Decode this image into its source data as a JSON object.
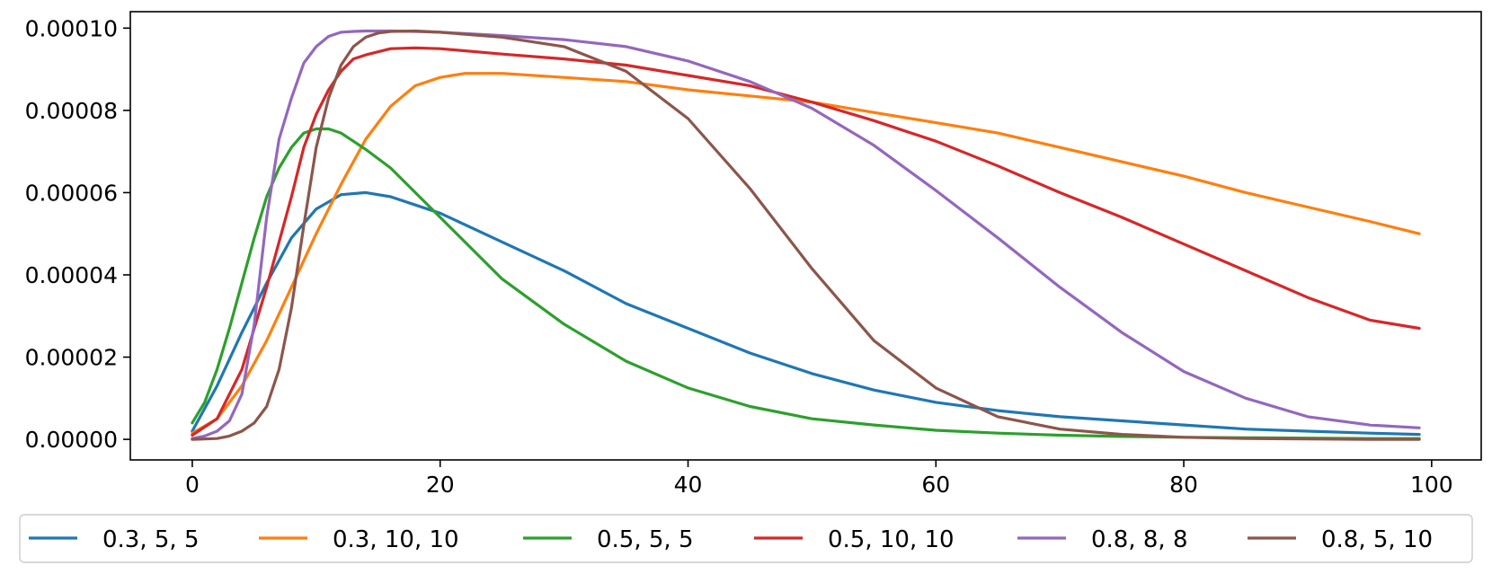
{
  "chart_data": {
    "type": "line",
    "title": "",
    "xlabel": "",
    "ylabel": "",
    "xlim": [
      -5,
      104
    ],
    "ylim": [
      -5e-06,
      0.000104
    ],
    "xticks": [
      0,
      20,
      40,
      60,
      80,
      100
    ],
    "yticks": [
      0.0,
      2e-05,
      4e-05,
      6e-05,
      8e-05,
      0.0001
    ],
    "xtick_labels": [
      "0",
      "20",
      "40",
      "60",
      "80",
      "100"
    ],
    "ytick_labels": [
      "0.00000",
      "0.00002",
      "0.00004",
      "0.00006",
      "0.00008",
      "0.00010"
    ],
    "grid": false,
    "legend_placement": "below",
    "series": [
      {
        "name": "0.3, 5, 5",
        "color": "#1f77b4",
        "x": [
          0,
          2,
          4,
          6,
          8,
          10,
          12,
          14,
          16,
          18,
          20,
          25,
          30,
          35,
          40,
          45,
          50,
          55,
          60,
          65,
          70,
          75,
          80,
          85,
          90,
          95,
          99
        ],
        "y": [
          2e-06,
          1.3e-05,
          2.6e-05,
          3.8e-05,
          4.9e-05,
          5.6e-05,
          5.95e-05,
          6e-05,
          5.9e-05,
          5.7e-05,
          5.5e-05,
          4.8e-05,
          4.1e-05,
          3.3e-05,
          2.7e-05,
          2.1e-05,
          1.6e-05,
          1.2e-05,
          9e-06,
          7e-06,
          5.5e-06,
          4.5e-06,
          3.5e-06,
          2.5e-06,
          2e-06,
          1.5e-06,
          1.2e-06
        ]
      },
      {
        "name": "0.3, 10, 10",
        "color": "#ff7f0e",
        "x": [
          0,
          2,
          4,
          6,
          8,
          10,
          12,
          14,
          16,
          18,
          20,
          22,
          25,
          30,
          35,
          40,
          45,
          50,
          55,
          60,
          65,
          70,
          75,
          80,
          85,
          90,
          95,
          99
        ],
        "y": [
          1.5e-06,
          5e-06,
          1.3e-05,
          2.4e-05,
          3.7e-05,
          5e-05,
          6.2e-05,
          7.3e-05,
          8.1e-05,
          8.6e-05,
          8.8e-05,
          8.9e-05,
          8.9e-05,
          8.8e-05,
          8.7e-05,
          8.5e-05,
          8.35e-05,
          8.2e-05,
          7.95e-05,
          7.7e-05,
          7.45e-05,
          7.1e-05,
          6.75e-05,
          6.4e-05,
          6e-05,
          5.65e-05,
          5.3e-05,
          5e-05
        ]
      },
      {
        "name": "0.5, 5, 5",
        "color": "#2ca02c",
        "x": [
          0,
          1,
          2,
          3,
          4,
          5,
          6,
          7,
          8,
          9,
          10,
          11,
          12,
          13,
          14,
          16,
          18,
          20,
          25,
          30,
          35,
          40,
          45,
          50,
          55,
          60,
          65,
          70,
          75,
          80,
          85,
          90,
          95,
          99
        ],
        "y": [
          4e-06,
          9e-06,
          1.7e-05,
          2.7e-05,
          3.8e-05,
          4.9e-05,
          5.9e-05,
          6.6e-05,
          7.1e-05,
          7.45e-05,
          7.55e-05,
          7.55e-05,
          7.45e-05,
          7.25e-05,
          7.05e-05,
          6.6e-05,
          6e-05,
          5.4e-05,
          3.9e-05,
          2.8e-05,
          1.9e-05,
          1.25e-05,
          8e-06,
          5e-06,
          3.5e-06,
          2.2e-06,
          1.5e-06,
          1e-06,
          7e-07,
          5e-07,
          4e-07,
          3e-07,
          2e-07,
          2e-07
        ]
      },
      {
        "name": "0.5, 10, 10",
        "color": "#d62728",
        "x": [
          0,
          2,
          4,
          6,
          8,
          9,
          10,
          11,
          12,
          13,
          14,
          16,
          18,
          20,
          25,
          30,
          35,
          40,
          45,
          50,
          55,
          60,
          65,
          70,
          75,
          80,
          85,
          90,
          95,
          99
        ],
        "y": [
          1e-06,
          5e-06,
          1.7e-05,
          3.7e-05,
          5.9e-05,
          7.1e-05,
          7.9e-05,
          8.5e-05,
          8.95e-05,
          9.25e-05,
          9.35e-05,
          9.5e-05,
          9.52e-05,
          9.5e-05,
          9.37e-05,
          9.25e-05,
          9.1e-05,
          8.85e-05,
          8.6e-05,
          8.2e-05,
          7.75e-05,
          7.25e-05,
          6.65e-05,
          6e-05,
          5.4e-05,
          4.75e-05,
          4.1e-05,
          3.45e-05,
          2.9e-05,
          2.7e-05
        ]
      },
      {
        "name": "0.8, 8, 8",
        "color": "#9467bd",
        "x": [
          0,
          1,
          2,
          3,
          4,
          5,
          6,
          7,
          8,
          9,
          10,
          11,
          12,
          13,
          14,
          16,
          18,
          20,
          25,
          30,
          35,
          40,
          45,
          50,
          55,
          60,
          65,
          70,
          75,
          80,
          85,
          90,
          95,
          99
        ],
        "y": [
          2e-07,
          8e-07,
          2e-06,
          4.5e-06,
          1.1e-05,
          2.8e-05,
          5.4e-05,
          7.3e-05,
          8.3e-05,
          9.15e-05,
          9.55e-05,
          9.8e-05,
          9.9e-05,
          9.92e-05,
          9.93e-05,
          9.93e-05,
          9.92e-05,
          9.9e-05,
          9.82e-05,
          9.72e-05,
          9.55e-05,
          9.2e-05,
          8.7e-05,
          8.05e-05,
          7.15e-05,
          6.05e-05,
          4.9e-05,
          3.7e-05,
          2.6e-05,
          1.65e-05,
          1e-05,
          5.5e-06,
          3.5e-06,
          2.8e-06
        ]
      },
      {
        "name": "0.8, 5, 10",
        "color": "#8c564b",
        "x": [
          0,
          2,
          3,
          4,
          5,
          6,
          7,
          8,
          9,
          10,
          11,
          12,
          13,
          14,
          15,
          16,
          18,
          20,
          25,
          30,
          35,
          40,
          45,
          50,
          55,
          60,
          65,
          70,
          75,
          80,
          85,
          90,
          95,
          99
        ],
        "y": [
          0.0,
          2e-07,
          8e-07,
          2e-06,
          4e-06,
          8e-06,
          1.7e-05,
          3.2e-05,
          5.2e-05,
          7.1e-05,
          8.3e-05,
          9.1e-05,
          9.55e-05,
          9.78e-05,
          9.88e-05,
          9.92e-05,
          9.93e-05,
          9.9e-05,
          9.78e-05,
          9.55e-05,
          8.95e-05,
          7.8e-05,
          6.1e-05,
          4.15e-05,
          2.4e-05,
          1.25e-05,
          5.5e-06,
          2.5e-06,
          1.2e-06,
          5e-07,
          2e-07,
          1e-07,
          0.0,
          0.0
        ]
      }
    ]
  }
}
